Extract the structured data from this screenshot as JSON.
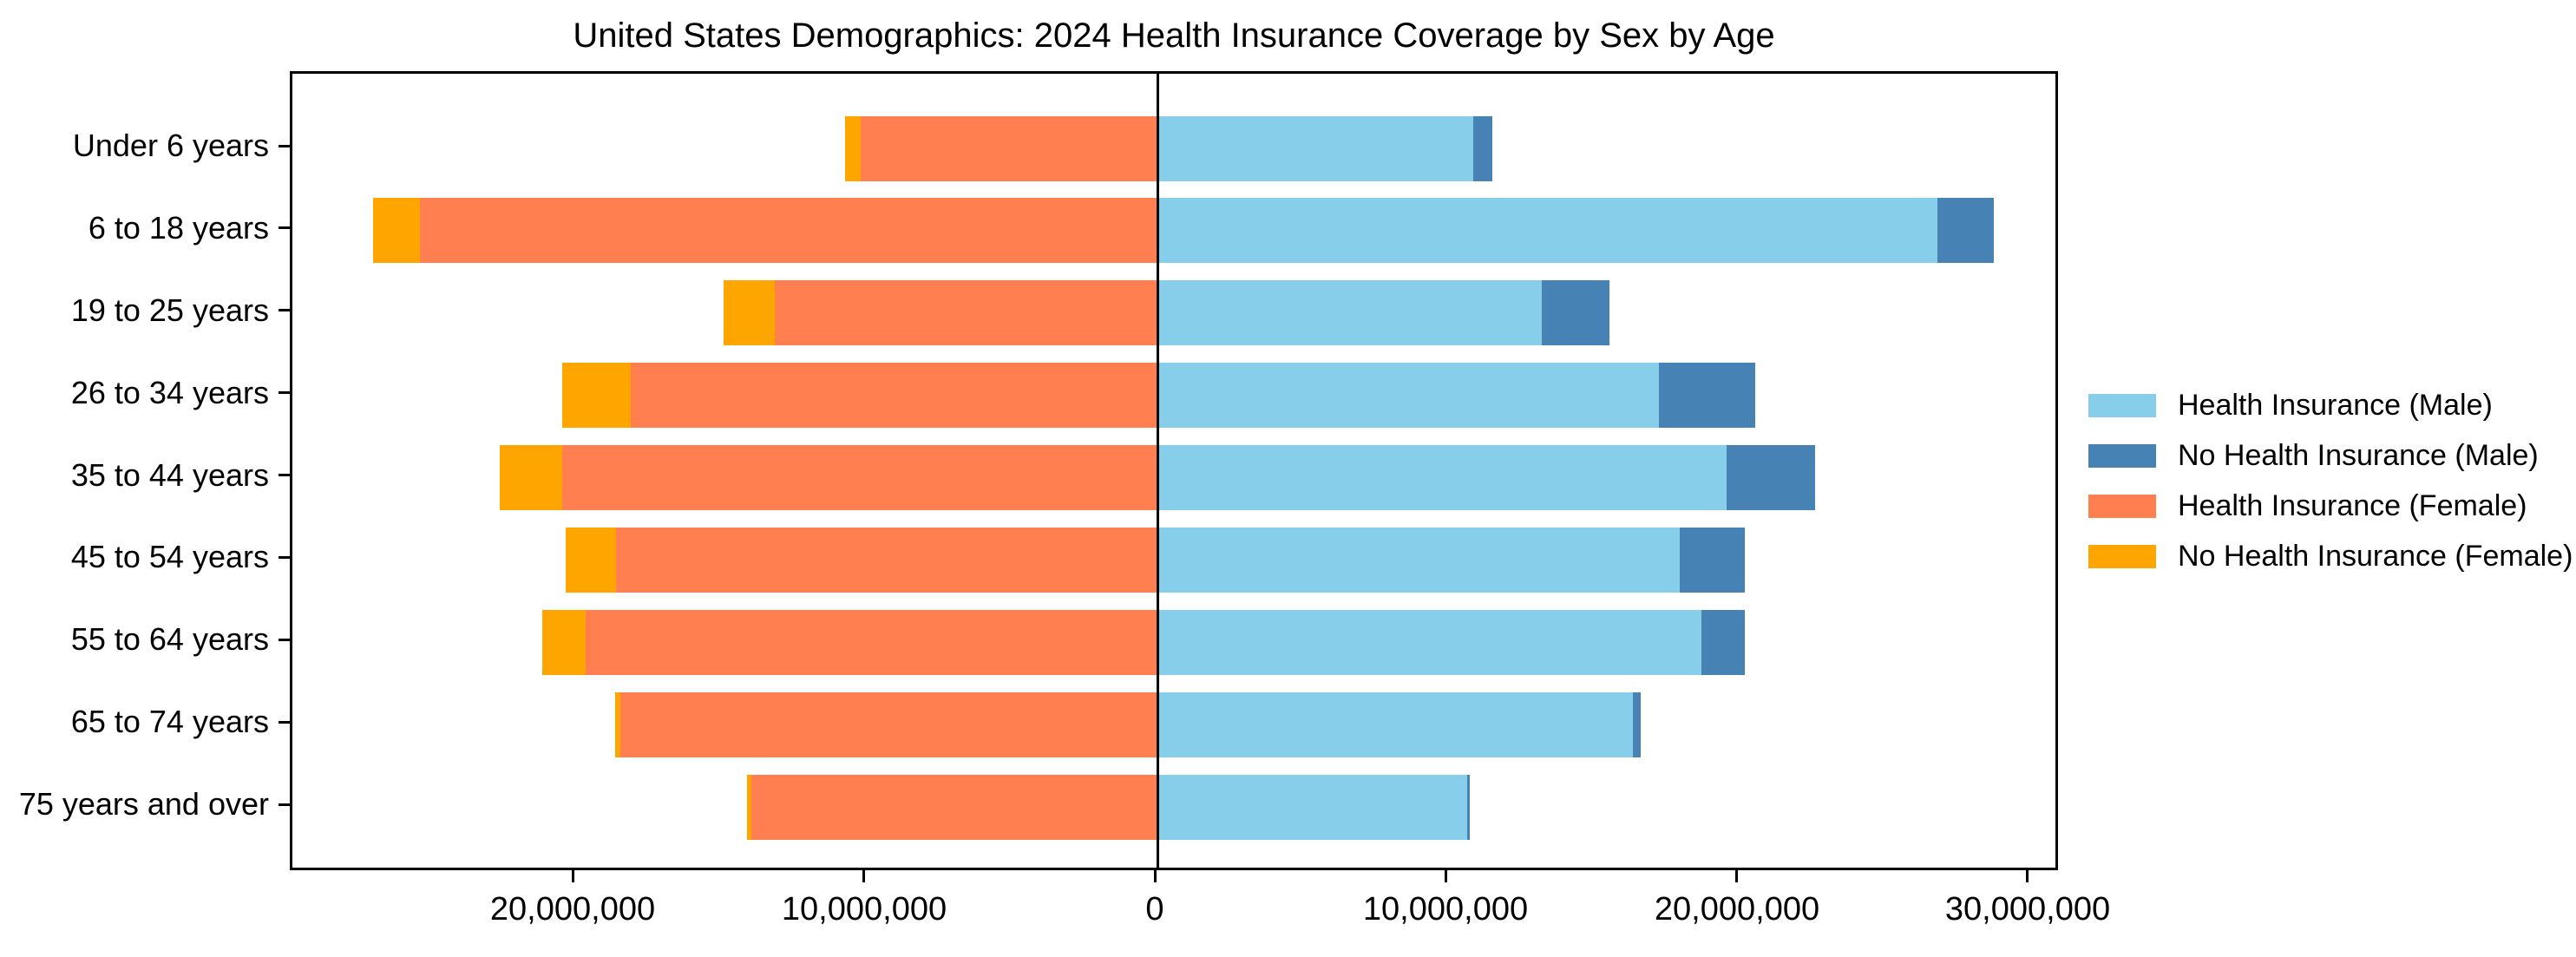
{
  "chart_data": {
    "type": "bar",
    "variant": "population-pyramid-stacked-horizontal",
    "title": "United States Demographics: 2024 Health Insurance Coverage by Sex by Age",
    "xlabel": "",
    "ylabel": "",
    "grid": false,
    "legend_position": "center-right-outside",
    "categories": [
      "Under 6 years",
      "6 to 18 years",
      "19 to 25 years",
      "26 to 34 years",
      "35 to 44 years",
      "45 to 54 years",
      "55 to 64 years",
      "65 to 74 years",
      "75 years and over"
    ],
    "x_ticks": [
      -20000000,
      -10000000,
      0,
      10000000,
      20000000,
      30000000
    ],
    "x_tick_labels": [
      "20,000,000",
      "10,000,000",
      "0",
      "10,000,000",
      "20,000,000",
      "30,000,000"
    ],
    "xlim": [
      -29700000,
      31050000
    ],
    "series": [
      {
        "name": "Health Insurance (Male)",
        "color": "#87CEEB",
        "side": "right",
        "stack_order": 1,
        "values": [
          10850000,
          26800000,
          13200000,
          17250000,
          19550000,
          17950000,
          18700000,
          16350000,
          10650000
        ]
      },
      {
        "name": "No Health Insurance (Male)",
        "color": "#4682B4",
        "side": "right",
        "stack_order": 2,
        "values": [
          650000,
          1950000,
          2350000,
          3300000,
          3050000,
          2250000,
          1500000,
          270000,
          100000
        ]
      },
      {
        "name": "Health Insurance (Female)",
        "color": "#FF7F50",
        "side": "left",
        "stack_order": 1,
        "values": [
          10200000,
          25350000,
          13150000,
          18100000,
          20450000,
          18600000,
          19650000,
          18450000,
          13950000
        ]
      },
      {
        "name": "No Health Insurance (Female)",
        "color": "#FFA500",
        "side": "left",
        "stack_order": 2,
        "values": [
          550000,
          1600000,
          1750000,
          2350000,
          2150000,
          1750000,
          1500000,
          200000,
          150000
        ]
      }
    ],
    "axis_color": "#000000",
    "zero_line_color": "#000000"
  }
}
